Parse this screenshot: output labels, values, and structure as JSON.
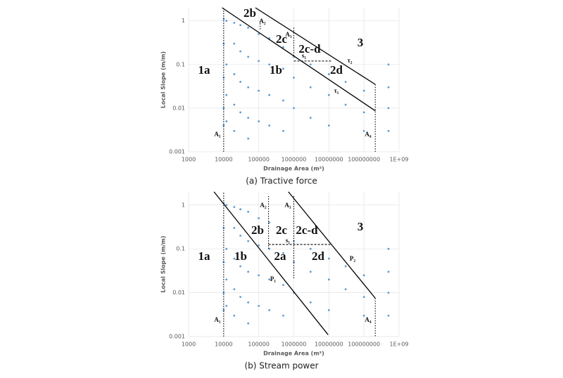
{
  "chart_data": [
    {
      "type": "scatter",
      "caption": "(a) Tractive force",
      "x_label": "Drainage Area (m²)",
      "y_label": "Local Slope (m/m)",
      "log_x": true,
      "log_y": true,
      "grid": true,
      "xlim": [
        1000,
        1000000000
      ],
      "ylim": [
        0.001,
        2
      ],
      "xticks": [
        1000,
        10000,
        100000,
        1000000,
        10000000,
        100000000,
        {
          "value": 1000000000,
          "label": "1E+09"
        }
      ],
      "yticks": [
        0.001,
        0.01,
        0.1,
        1
      ],
      "series": [
        {
          "color": "#5b9bd5",
          "x": [
            10000,
            10000,
            10000,
            10000,
            10000,
            12000,
            12000,
            12000,
            12000,
            20000,
            20000,
            20000,
            20000,
            20000,
            30000,
            30000,
            30000,
            30000,
            50000,
            50000,
            50000,
            50000,
            50000,
            100000,
            100000,
            100000,
            100000,
            200000,
            200000,
            200000,
            200000,
            500000,
            500000,
            500000,
            500000,
            1000000,
            1000000,
            1000000,
            3000000,
            3000000,
            3000000,
            10000000,
            10000000,
            10000000,
            30000000,
            30000000,
            100000000,
            100000000,
            100000000,
            500000000,
            500000000,
            500000000,
            500000000
          ],
          "y": [
            1.1,
            0.3,
            0.05,
            0.01,
            0.004,
            1,
            0.1,
            0.02,
            0.005,
            0.9,
            0.3,
            0.06,
            0.012,
            0.003,
            0.8,
            0.2,
            0.04,
            0.008,
            0.7,
            0.15,
            0.03,
            0.006,
            0.002,
            0.5,
            0.12,
            0.025,
            0.005,
            0.4,
            0.1,
            0.02,
            0.004,
            0.25,
            0.08,
            0.015,
            0.003,
            0.15,
            0.05,
            0.01,
            0.1,
            0.03,
            0.006,
            0.06,
            0.02,
            0.004,
            0.04,
            0.012,
            0.025,
            0.008,
            0.003,
            0.1,
            0.03,
            0.01,
            0.003
          ]
        }
      ],
      "lines": [
        {
          "style": "solid",
          "x": [
            9000,
            210000000
          ],
          "y": [
            2,
            0.0087
          ]
        },
        {
          "style": "solid",
          "x": [
            80000,
            210000000
          ],
          "y": [
            2,
            0.035
          ]
        },
        {
          "style": "dotted",
          "x": [
            10000,
            10000
          ],
          "y": [
            0.001,
            2
          ]
        },
        {
          "style": "dotted",
          "x": [
            110000,
            110000
          ],
          "y": [
            1,
            0.6
          ]
        },
        {
          "style": "dotted",
          "x": [
            1000000,
            1000000
          ],
          "y": [
            0.7,
            0.15
          ]
        },
        {
          "style": "dashed",
          "x": [
            1000000,
            12000000
          ],
          "y": [
            0.12,
            0.12
          ]
        },
        {
          "style": "dotted",
          "x": [
            210000000,
            210000000
          ],
          "y": [
            0.035,
            0.001
          ]
        }
      ],
      "annotations": [
        "2b",
        "A₂",
        "A₃",
        "2c",
        "2c-d",
        "s₁",
        "3",
        "τ₂",
        "1a",
        "1b",
        "2d",
        "τ₁",
        "A₁",
        "A₄"
      ]
    },
    {
      "type": "scatter",
      "caption": "(b) Stream power",
      "x_label": "Drainage Area (m²)",
      "y_label": "Local Slope (m/m)",
      "log_x": true,
      "log_y": true,
      "grid": true,
      "xlim": [
        1000,
        1000000000
      ],
      "ylim": [
        0.001,
        2
      ],
      "xticks": [
        1000,
        10000,
        100000,
        1000000,
        10000000,
        100000000,
        {
          "value": 1000000000,
          "label": "1E+09"
        }
      ],
      "yticks": [
        0.001,
        0.01,
        0.1,
        1
      ],
      "series": [
        {
          "color": "#5b9bd5",
          "x": [
            10000,
            10000,
            10000,
            10000,
            10000,
            12000,
            12000,
            12000,
            12000,
            20000,
            20000,
            20000,
            20000,
            20000,
            30000,
            30000,
            30000,
            30000,
            50000,
            50000,
            50000,
            50000,
            50000,
            100000,
            100000,
            100000,
            100000,
            200000,
            200000,
            200000,
            200000,
            500000,
            500000,
            500000,
            500000,
            1000000,
            1000000,
            1000000,
            3000000,
            3000000,
            3000000,
            10000000,
            10000000,
            10000000,
            30000000,
            30000000,
            100000000,
            100000000,
            100000000,
            500000000,
            500000000,
            500000000,
            500000000
          ],
          "y": [
            1.1,
            0.3,
            0.05,
            0.01,
            0.004,
            1,
            0.1,
            0.02,
            0.005,
            0.9,
            0.3,
            0.06,
            0.012,
            0.003,
            0.8,
            0.2,
            0.04,
            0.008,
            0.7,
            0.15,
            0.03,
            0.006,
            0.002,
            0.5,
            0.12,
            0.025,
            0.005,
            0.4,
            0.1,
            0.02,
            0.004,
            0.25,
            0.08,
            0.015,
            0.003,
            0.15,
            0.05,
            0.01,
            0.1,
            0.03,
            0.006,
            0.06,
            0.02,
            0.004,
            0.04,
            0.012,
            0.025,
            0.008,
            0.003,
            0.1,
            0.03,
            0.01,
            0.003
          ]
        }
      ],
      "lines": [
        {
          "style": "solid",
          "x": [
            5300,
            9500000
          ],
          "y": [
            2,
            0.0011
          ]
        },
        {
          "style": "solid",
          "x": [
            700000,
            210000000
          ],
          "y": [
            2,
            0.0075
          ]
        },
        {
          "style": "dotted",
          "x": [
            10000,
            10000
          ],
          "y": [
            0.001,
            2
          ]
        },
        {
          "style": "dotted",
          "x": [
            190000,
            190000
          ],
          "y": [
            1.6,
            0.1
          ]
        },
        {
          "style": "dotted",
          "x": [
            1000000,
            1000000
          ],
          "y": [
            1.6,
            0.02
          ]
        },
        {
          "style": "dashed",
          "x": [
            190000,
            11000000
          ],
          "y": [
            0.126,
            0.126
          ]
        },
        {
          "style": "dotted",
          "x": [
            210000000,
            210000000
          ],
          "y": [
            0.0075,
            0.001
          ]
        }
      ],
      "annotations": [
        "A₂",
        "A₃",
        "3",
        "2b",
        "2c",
        "2c-d",
        "s₁",
        "1a",
        "1b",
        "2a",
        "2d",
        "P₂",
        "P₁",
        "A₁",
        "A₄"
      ]
    }
  ]
}
